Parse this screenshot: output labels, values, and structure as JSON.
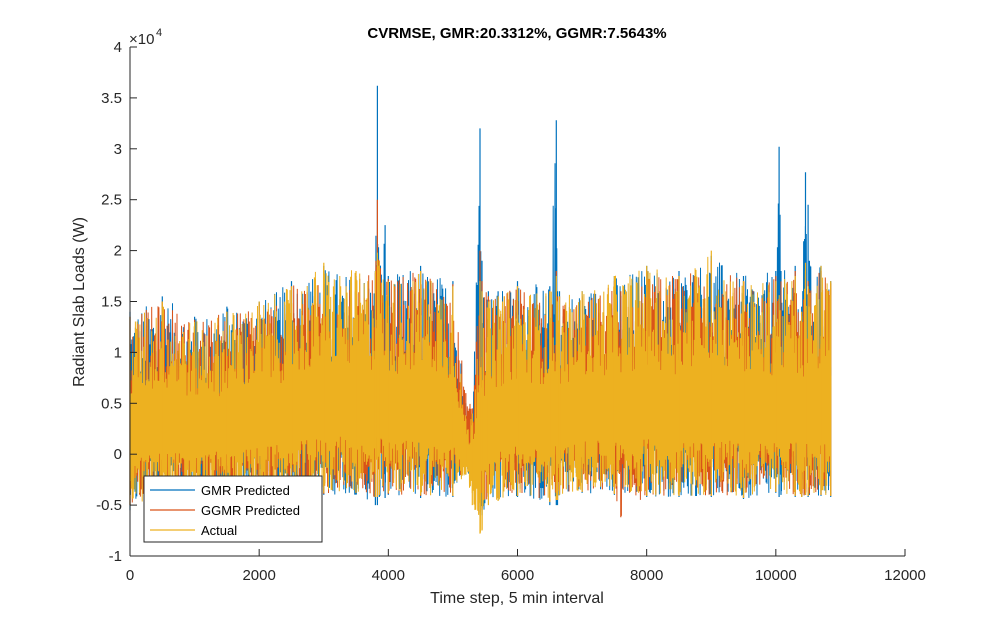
{
  "chart_data": {
    "type": "line",
    "title": "CVRMSE, GMR:20.3312%, GGMR:7.5643%",
    "xlabel": "Time step, 5 min interval",
    "ylabel": "Radiant Slab Loads (W)",
    "y_exponent_label": "×10",
    "y_exponent_power": "4",
    "xlim": [
      0,
      12000
    ],
    "ylim": [
      -10000,
      40000
    ],
    "x_ticks": [
      0,
      2000,
      4000,
      6000,
      8000,
      10000,
      12000
    ],
    "x_tick_labels": [
      "0",
      "2000",
      "4000",
      "6000",
      "8000",
      "10000",
      "12000"
    ],
    "y_ticks": [
      -10000,
      -5000,
      0,
      5000,
      10000,
      15000,
      20000,
      25000,
      30000,
      35000,
      40000
    ],
    "y_tick_labels": [
      "-1",
      "-0.5",
      "0",
      "0.5",
      "1",
      "1.5",
      "2",
      "2.5",
      "3",
      "3.5",
      "4"
    ],
    "grid": false,
    "legend_position": "bottom-left",
    "series": [
      {
        "name": "GMR Predicted",
        "color": "#0072BD",
        "envelope": {
          "x": [
            0,
            500,
            1000,
            1500,
            2000,
            2500,
            3000,
            3500,
            3800,
            3830,
            3860,
            3950,
            4000,
            4500,
            5000,
            5200,
            5300,
            5420,
            5450,
            5550,
            5700,
            6000,
            6500,
            6600,
            6620,
            6650,
            7000,
            7500,
            8000,
            8500,
            9000,
            9500,
            10000,
            10050,
            10080,
            10300,
            10400,
            10460,
            10500,
            10520,
            10700,
            10850
          ],
          "min": [
            -5500,
            -4500,
            -4200,
            -4300,
            -4100,
            -4200,
            -4000,
            -4000,
            -5000,
            -5000,
            -4200,
            -4300,
            -4000,
            -4300,
            -4200,
            -2000,
            -2000,
            -6000,
            -6000,
            -4200,
            -4500,
            -4200,
            -5000,
            -5000,
            -5000,
            -4000,
            -3800,
            -4000,
            -4200,
            -4200,
            -4200,
            -4400,
            -3800,
            -4200,
            -4000,
            -4200,
            -4200,
            -4000,
            -4200,
            -4000,
            -4100,
            -4200
          ],
          "max": [
            14000,
            15500,
            13500,
            14500,
            15000,
            17000,
            18500,
            17500,
            18000,
            36200,
            19000,
            22500,
            17500,
            18500,
            17000,
            5000,
            4000,
            32000,
            19000,
            16000,
            16000,
            17000,
            16500,
            32800,
            16000,
            16000,
            16000,
            17500,
            18500,
            18000,
            19500,
            17500,
            18000,
            30200,
            18000,
            18500,
            14500,
            27700,
            24500,
            19000,
            18500,
            17000
          ]
        }
      },
      {
        "name": "GGMR Predicted",
        "color": "#D95319",
        "envelope": {
          "x": [
            0,
            500,
            1000,
            1500,
            2000,
            2500,
            3000,
            3500,
            3800,
            3830,
            3860,
            4000,
            4500,
            5000,
            5200,
            5300,
            5420,
            5450,
            5550,
            5700,
            6000,
            6500,
            6600,
            6620,
            6650,
            7000,
            7500,
            7600,
            8000,
            8500,
            9000,
            9500,
            10000,
            10300,
            10400,
            10460,
            10500,
            10700,
            10850
          ],
          "min": [
            -5000,
            -4300,
            -4000,
            -4100,
            -4000,
            -4100,
            -3900,
            -3800,
            -4200,
            -4200,
            -4000,
            -3900,
            -4100,
            -4100,
            -1500,
            -1200,
            -5800,
            -5500,
            -4100,
            -4300,
            -4100,
            -4600,
            -4500,
            -4500,
            -3900,
            -3700,
            -3900,
            -6200,
            -4100,
            -4100,
            -4100,
            -4300,
            -3700,
            -4100,
            -4100,
            -4000,
            -4100,
            -4000,
            -4100
          ],
          "max": [
            13500,
            15000,
            13200,
            14000,
            14800,
            16500,
            18000,
            17200,
            17800,
            25000,
            18500,
            17200,
            18000,
            16700,
            6000,
            4500,
            20000,
            17000,
            15500,
            15500,
            16500,
            16000,
            18000,
            15500,
            15500,
            15500,
            17000,
            16000,
            18000,
            17500,
            19000,
            17000,
            17500,
            18000,
            14000,
            17500,
            17000,
            18000,
            16800
          ]
        }
      },
      {
        "name": "Actual",
        "color": "#EDB120",
        "envelope": {
          "x": [
            0,
            500,
            1000,
            1500,
            2000,
            2500,
            3000,
            3500,
            3800,
            3830,
            3860,
            4000,
            4500,
            5000,
            5200,
            5300,
            5420,
            5450,
            5550,
            5700,
            6000,
            6500,
            6600,
            6620,
            6650,
            7000,
            7500,
            8000,
            8500,
            9000,
            9500,
            10000,
            10300,
            10400,
            10460,
            10500,
            10700,
            10850
          ],
          "min": [
            -5000,
            -4500,
            -4200,
            -4200,
            -4000,
            -4100,
            -3800,
            -3800,
            -4200,
            -4200,
            -4000,
            -3800,
            -4000,
            -4100,
            -2000,
            -5000,
            -7800,
            -7500,
            -5000,
            -4600,
            -4100,
            -4700,
            -4500,
            -4500,
            -4000,
            -3700,
            -3900,
            -4100,
            -4100,
            -4100,
            -4300,
            -3700,
            -4100,
            -4200,
            -4000,
            -4100,
            -4000,
            -4100
          ],
          "max": [
            13500,
            15000,
            13000,
            14000,
            15000,
            16500,
            18800,
            18000,
            18000,
            19800,
            19000,
            17000,
            18000,
            16500,
            3500,
            4000,
            17000,
            16000,
            15000,
            15500,
            16500,
            16000,
            17500,
            15000,
            15500,
            16000,
            17500,
            18500,
            17500,
            20000,
            17000,
            17000,
            17500,
            14000,
            18800,
            16500,
            18500,
            17000
          ]
        }
      }
    ]
  }
}
